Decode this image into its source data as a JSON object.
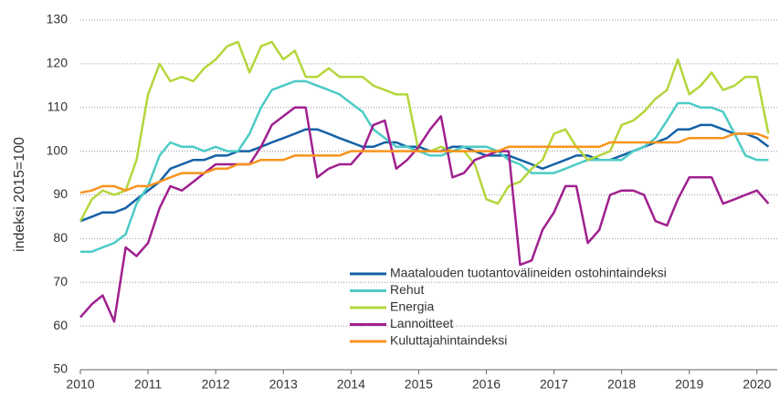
{
  "chart_data": {
    "type": "line",
    "ylabel": "indeksi 2015=100",
    "x": [
      2010,
      2010.17,
      2010.33,
      2010.5,
      2010.67,
      2010.83,
      2011,
      2011.17,
      2011.33,
      2011.5,
      2011.67,
      2011.83,
      2012,
      2012.17,
      2012.33,
      2012.5,
      2012.67,
      2012.83,
      2013,
      2013.17,
      2013.33,
      2013.5,
      2013.67,
      2013.83,
      2014,
      2014.17,
      2014.33,
      2014.5,
      2014.67,
      2014.83,
      2015,
      2015.17,
      2015.33,
      2015.5,
      2015.67,
      2015.83,
      2016,
      2016.17,
      2016.33,
      2016.5,
      2016.67,
      2016.83,
      2017,
      2017.17,
      2017.33,
      2017.5,
      2017.67,
      2017.83,
      2018,
      2018.17,
      2018.33,
      2018.5,
      2018.67,
      2018.83,
      2019,
      2019.17,
      2019.33,
      2019.5,
      2019.67,
      2019.83,
      2020,
      2020.17
    ],
    "series": [
      {
        "name": "Maatalouden tuotantovälineiden ostohintaindeksi",
        "color": "#1361a6",
        "values": [
          84,
          85,
          86,
          86,
          87,
          89,
          91,
          93,
          96,
          97,
          98,
          98,
          99,
          99,
          100,
          100,
          101,
          102,
          103,
          104,
          105,
          105,
          104,
          103,
          102,
          101,
          101,
          102,
          102,
          101,
          101,
          100,
          100,
          101,
          101,
          100,
          99,
          99,
          99,
          98,
          97,
          96,
          97,
          98,
          99,
          99,
          98,
          98,
          99,
          100,
          101,
          102,
          103,
          105,
          105,
          106,
          106,
          105,
          104,
          104,
          103,
          101
        ]
      },
      {
        "name": "Rehut",
        "color": "#4dcbc6",
        "values": [
          77,
          77,
          78,
          79,
          81,
          88,
          92,
          99,
          102,
          101,
          101,
          100,
          101,
          100,
          100,
          104,
          110,
          114,
          115,
          116,
          116,
          115,
          114,
          113,
          111,
          109,
          105,
          103,
          101,
          101,
          100,
          99,
          99,
          100,
          101,
          101,
          101,
          100,
          98,
          97,
          95,
          95,
          95,
          96,
          97,
          98,
          98,
          98,
          98,
          100,
          101,
          103,
          107,
          111,
          111,
          110,
          110,
          109,
          104,
          99,
          98,
          98
        ]
      },
      {
        "name": "Energia",
        "color": "#b4d63c",
        "values": [
          84,
          89,
          91,
          90,
          91,
          98,
          113,
          120,
          116,
          117,
          116,
          119,
          121,
          124,
          125,
          118,
          124,
          125,
          121,
          123,
          117,
          117,
          119,
          117,
          117,
          117,
          115,
          114,
          113,
          113,
          100,
          100,
          101,
          100,
          100,
          97,
          89,
          88,
          92,
          93,
          96,
          98,
          104,
          105,
          101,
          98,
          99,
          100,
          106,
          107,
          109,
          112,
          114,
          121,
          113,
          115,
          118,
          114,
          115,
          117,
          117,
          104
        ]
      },
      {
        "name": "Lannoitteet",
        "color": "#a0208f",
        "values": [
          62,
          65,
          67,
          61,
          78,
          76,
          79,
          87,
          92,
          91,
          93,
          95,
          97,
          97,
          97,
          97,
          101,
          106,
          108,
          110,
          110,
          94,
          96,
          97,
          97,
          100,
          106,
          107,
          96,
          98,
          101,
          105,
          108,
          94,
          95,
          98,
          99,
          100,
          100,
          74,
          75,
          82,
          86,
          92,
          92,
          79,
          82,
          90,
          91,
          91,
          90,
          84,
          83,
          89,
          94,
          94,
          94,
          88,
          89,
          90,
          91,
          88
        ]
      },
      {
        "name": "Kuluttajahintaindeksi",
        "color": "#f7941d",
        "values": [
          90.5,
          91,
          92,
          92,
          91,
          92,
          92,
          93,
          94,
          95,
          95,
          95,
          96,
          96,
          97,
          97,
          98,
          98,
          98,
          99,
          99,
          99,
          99,
          99,
          100,
          100,
          100,
          100,
          100,
          100,
          100,
          100,
          100,
          100,
          100,
          100,
          100,
          100,
          101,
          101,
          101,
          101,
          101,
          101,
          101,
          101,
          101,
          102,
          102,
          102,
          102,
          102,
          102,
          102,
          103,
          103,
          103,
          103,
          104,
          104,
          104,
          103
        ]
      }
    ],
    "xlim": [
      2010,
      2020.3
    ],
    "xticks": [
      2010,
      2011,
      2012,
      2013,
      2014,
      2015,
      2016,
      2017,
      2018,
      2019,
      2020
    ],
    "ylim": [
      50,
      130
    ],
    "yticks": [
      50,
      60,
      70,
      80,
      90,
      100,
      110,
      120,
      130
    ],
    "grid": true,
    "legend": "lower center"
  }
}
